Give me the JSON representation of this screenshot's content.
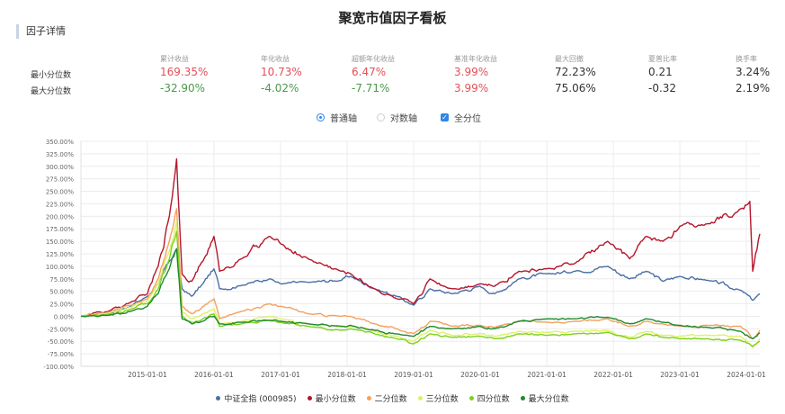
{
  "page": {
    "title": "聚宽市值因子看板",
    "section": "因子详情"
  },
  "stats": {
    "headers": [
      "累计收益",
      "年化收益",
      "超额年化收益",
      "基准年化收益",
      "最大回撤",
      "夏普比率",
      "换手率"
    ],
    "rows": [
      {
        "label": "最小分位数",
        "values": [
          "169.35%",
          "10.73%",
          "6.47%",
          "3.99%",
          "72.23%",
          "0.21",
          "3.24%"
        ],
        "tones": [
          "pos",
          "pos",
          "pos",
          "pos",
          "neu",
          "neu",
          "neu"
        ]
      },
      {
        "label": "最大分位数",
        "values": [
          "-32.90%",
          "-4.02%",
          "-7.71%",
          "3.99%",
          "75.06%",
          "-0.32",
          "2.19%"
        ],
        "tones": [
          "neg",
          "neg",
          "neg",
          "pos",
          "neu",
          "neu",
          "neu"
        ]
      }
    ]
  },
  "controls": {
    "linear_label": "普通轴",
    "log_label": "对数轴",
    "all_label": "全分位",
    "linear_selected": true,
    "all_checked": true
  },
  "colors": {
    "accent": "#2f86e8",
    "positive": "#e4505a",
    "negative": "#4a9a4a"
  },
  "chart_data": {
    "type": "line",
    "ylim": [
      -100,
      350
    ],
    "y_ticks": [
      "350.00%",
      "325.00%",
      "300.00%",
      "275.00%",
      "250.00%",
      "225.00%",
      "200.00%",
      "175.00%",
      "150.00%",
      "125.00%",
      "100.00%",
      "75.00%",
      "50.00%",
      "25.00%",
      "0.00%",
      "-25.00%",
      "-50.00%",
      "-75.00%",
      "-100.00%"
    ],
    "x_range": [
      "2014-01-01",
      "2024-03-15"
    ],
    "x_ticks": [
      "2015-01-01",
      "2016-01-01",
      "2017-01-01",
      "2018-01-01",
      "2019-01-01",
      "2020-01-01",
      "2021-01-01",
      "2022-01-01",
      "2023-01-01",
      "2024-01-01"
    ],
    "grid": true,
    "legend_position": "bottom",
    "series": [
      {
        "name": "中证全指 (000985)",
        "color": "#4a6fa5",
        "points": [
          [
            "2014-01-01",
            0
          ],
          [
            "2014-06-01",
            5
          ],
          [
            "2014-10-01",
            20
          ],
          [
            "2015-01-01",
            40
          ],
          [
            "2015-03-01",
            65
          ],
          [
            "2015-05-01",
            110
          ],
          [
            "2015-06-10",
            135
          ],
          [
            "2015-07-10",
            55
          ],
          [
            "2015-09-01",
            40
          ],
          [
            "2015-11-01",
            65
          ],
          [
            "2016-01-01",
            95
          ],
          [
            "2016-02-01",
            55
          ],
          [
            "2016-06-01",
            62
          ],
          [
            "2016-11-01",
            75
          ],
          [
            "2017-01-01",
            65
          ],
          [
            "2017-06-01",
            68
          ],
          [
            "2017-12-01",
            72
          ],
          [
            "2018-01-20",
            80
          ],
          [
            "2018-06-01",
            55
          ],
          [
            "2018-10-01",
            40
          ],
          [
            "2019-01-01",
            22
          ],
          [
            "2019-04-01",
            55
          ],
          [
            "2019-08-01",
            45
          ],
          [
            "2020-01-01",
            60
          ],
          [
            "2020-03-20",
            45
          ],
          [
            "2020-08-01",
            75
          ],
          [
            "2021-01-01",
            85
          ],
          [
            "2021-06-01",
            90
          ],
          [
            "2021-12-01",
            100
          ],
          [
            "2022-04-01",
            75
          ],
          [
            "2022-07-01",
            90
          ],
          [
            "2022-10-01",
            70
          ],
          [
            "2023-01-01",
            80
          ],
          [
            "2023-06-01",
            72
          ],
          [
            "2023-12-01",
            52
          ],
          [
            "2024-02-05",
            32
          ],
          [
            "2024-03-15",
            45
          ]
        ]
      },
      {
        "name": "最小分位数",
        "color": "#b5162c",
        "points": [
          [
            "2014-01-01",
            0
          ],
          [
            "2014-06-01",
            10
          ],
          [
            "2014-10-01",
            28
          ],
          [
            "2015-01-01",
            45
          ],
          [
            "2015-03-01",
            100
          ],
          [
            "2015-05-01",
            200
          ],
          [
            "2015-06-10",
            315
          ],
          [
            "2015-07-10",
            85
          ],
          [
            "2015-09-01",
            70
          ],
          [
            "2015-11-01",
            110
          ],
          [
            "2016-01-01",
            160
          ],
          [
            "2016-02-01",
            90
          ],
          [
            "2016-06-01",
            115
          ],
          [
            "2016-11-01",
            160
          ],
          [
            "2017-01-01",
            145
          ],
          [
            "2017-06-01",
            115
          ],
          [
            "2017-12-01",
            90
          ],
          [
            "2018-01-20",
            85
          ],
          [
            "2018-06-01",
            55
          ],
          [
            "2018-10-01",
            35
          ],
          [
            "2019-01-01",
            25
          ],
          [
            "2019-04-01",
            75
          ],
          [
            "2019-08-01",
            55
          ],
          [
            "2020-01-01",
            65
          ],
          [
            "2020-03-20",
            60
          ],
          [
            "2020-08-01",
            90
          ],
          [
            "2021-01-01",
            95
          ],
          [
            "2021-06-01",
            105
          ],
          [
            "2021-12-01",
            150
          ],
          [
            "2022-04-01",
            115
          ],
          [
            "2022-07-01",
            160
          ],
          [
            "2022-10-01",
            150
          ],
          [
            "2023-01-01",
            180
          ],
          [
            "2023-06-01",
            185
          ],
          [
            "2023-12-01",
            215
          ],
          [
            "2024-01-20",
            230
          ],
          [
            "2024-02-05",
            90
          ],
          [
            "2024-03-15",
            165
          ]
        ]
      },
      {
        "name": "二分位数",
        "color": "#f3a15e",
        "points": [
          [
            "2014-01-01",
            0
          ],
          [
            "2014-06-01",
            8
          ],
          [
            "2014-10-01",
            22
          ],
          [
            "2015-01-01",
            35
          ],
          [
            "2015-03-01",
            75
          ],
          [
            "2015-05-01",
            150
          ],
          [
            "2015-06-10",
            215
          ],
          [
            "2015-07-10",
            20
          ],
          [
            "2015-09-01",
            5
          ],
          [
            "2015-11-01",
            20
          ],
          [
            "2016-01-01",
            35
          ],
          [
            "2016-02-01",
            -5
          ],
          [
            "2016-06-01",
            10
          ],
          [
            "2016-11-01",
            25
          ],
          [
            "2017-01-01",
            20
          ],
          [
            "2017-06-01",
            5
          ],
          [
            "2017-12-01",
            0
          ],
          [
            "2018-01-20",
            0
          ],
          [
            "2018-06-01",
            -15
          ],
          [
            "2018-10-01",
            -25
          ],
          [
            "2019-01-01",
            -35
          ],
          [
            "2019-04-01",
            -10
          ],
          [
            "2019-08-01",
            -20
          ],
          [
            "2020-01-01",
            -18
          ],
          [
            "2020-03-20",
            -22
          ],
          [
            "2020-08-01",
            -10
          ],
          [
            "2021-01-01",
            -12
          ],
          [
            "2021-06-01",
            -10
          ],
          [
            "2021-12-01",
            -5
          ],
          [
            "2022-04-01",
            -20
          ],
          [
            "2022-07-01",
            -10
          ],
          [
            "2022-10-01",
            -15
          ],
          [
            "2023-01-01",
            -20
          ],
          [
            "2023-06-01",
            -18
          ],
          [
            "2023-12-01",
            -20
          ],
          [
            "2024-02-05",
            -45
          ],
          [
            "2024-03-15",
            -28
          ]
        ]
      },
      {
        "name": "三分位数",
        "color": "#dff06a",
        "points": [
          [
            "2014-01-01",
            0
          ],
          [
            "2014-06-01",
            6
          ],
          [
            "2014-10-01",
            18
          ],
          [
            "2015-01-01",
            30
          ],
          [
            "2015-03-01",
            65
          ],
          [
            "2015-05-01",
            130
          ],
          [
            "2015-06-10",
            190
          ],
          [
            "2015-07-10",
            8
          ],
          [
            "2015-09-01",
            -5
          ],
          [
            "2015-11-01",
            5
          ],
          [
            "2016-01-01",
            15
          ],
          [
            "2016-02-01",
            -15
          ],
          [
            "2016-06-01",
            -10
          ],
          [
            "2016-11-01",
            0
          ],
          [
            "2017-01-01",
            -5
          ],
          [
            "2017-06-01",
            -15
          ],
          [
            "2017-12-01",
            -22
          ],
          [
            "2018-01-20",
            -20
          ],
          [
            "2018-06-01",
            -30
          ],
          [
            "2018-10-01",
            -40
          ],
          [
            "2019-01-01",
            -50
          ],
          [
            "2019-04-01",
            -28
          ],
          [
            "2019-08-01",
            -38
          ],
          [
            "2020-01-01",
            -35
          ],
          [
            "2020-03-20",
            -40
          ],
          [
            "2020-08-01",
            -30
          ],
          [
            "2021-01-01",
            -32
          ],
          [
            "2021-06-01",
            -30
          ],
          [
            "2021-12-01",
            -28
          ],
          [
            "2022-04-01",
            -42
          ],
          [
            "2022-07-01",
            -30
          ],
          [
            "2022-10-01",
            -38
          ],
          [
            "2023-01-01",
            -40
          ],
          [
            "2023-06-01",
            -38
          ],
          [
            "2023-12-01",
            -40
          ],
          [
            "2024-02-05",
            -62
          ],
          [
            "2024-03-15",
            -45
          ]
        ]
      },
      {
        "name": "四分位数",
        "color": "#7cd11c",
        "points": [
          [
            "2014-01-01",
            0
          ],
          [
            "2014-06-01",
            4
          ],
          [
            "2014-10-01",
            14
          ],
          [
            "2015-01-01",
            25
          ],
          [
            "2015-03-01",
            55
          ],
          [
            "2015-05-01",
            115
          ],
          [
            "2015-06-10",
            170
          ],
          [
            "2015-07-10",
            0
          ],
          [
            "2015-09-01",
            -12
          ],
          [
            "2015-11-01",
            -5
          ],
          [
            "2016-01-01",
            5
          ],
          [
            "2016-02-01",
            -20
          ],
          [
            "2016-06-01",
            -15
          ],
          [
            "2016-11-01",
            -8
          ],
          [
            "2017-01-01",
            -12
          ],
          [
            "2017-06-01",
            -20
          ],
          [
            "2017-12-01",
            -28
          ],
          [
            "2018-01-20",
            -25
          ],
          [
            "2018-06-01",
            -35
          ],
          [
            "2018-10-01",
            -45
          ],
          [
            "2019-01-01",
            -55
          ],
          [
            "2019-04-01",
            -35
          ],
          [
            "2019-08-01",
            -42
          ],
          [
            "2020-01-01",
            -40
          ],
          [
            "2020-03-20",
            -45
          ],
          [
            "2020-08-01",
            -35
          ],
          [
            "2021-01-01",
            -38
          ],
          [
            "2021-06-01",
            -35
          ],
          [
            "2021-12-01",
            -32
          ],
          [
            "2022-04-01",
            -45
          ],
          [
            "2022-07-01",
            -35
          ],
          [
            "2022-10-01",
            -42
          ],
          [
            "2023-01-01",
            -45
          ],
          [
            "2023-06-01",
            -45
          ],
          [
            "2023-12-01",
            -48
          ],
          [
            "2024-02-05",
            -60
          ],
          [
            "2024-03-15",
            -50
          ]
        ]
      },
      {
        "name": "最大分位数",
        "color": "#1f8a2e",
        "points": [
          [
            "2014-01-01",
            0
          ],
          [
            "2014-06-01",
            2
          ],
          [
            "2014-10-01",
            10
          ],
          [
            "2015-01-01",
            20
          ],
          [
            "2015-03-01",
            45
          ],
          [
            "2015-05-01",
            95
          ],
          [
            "2015-06-10",
            135
          ],
          [
            "2015-07-10",
            -5
          ],
          [
            "2015-09-01",
            -15
          ],
          [
            "2015-11-01",
            -10
          ],
          [
            "2016-01-01",
            0
          ],
          [
            "2016-02-01",
            -15
          ],
          [
            "2016-06-01",
            -12
          ],
          [
            "2016-11-01",
            -8
          ],
          [
            "2017-01-01",
            -10
          ],
          [
            "2017-06-01",
            -15
          ],
          [
            "2017-12-01",
            -20
          ],
          [
            "2018-01-20",
            -18
          ],
          [
            "2018-06-01",
            -28
          ],
          [
            "2018-10-01",
            -35
          ],
          [
            "2019-01-01",
            -40
          ],
          [
            "2019-04-01",
            -20
          ],
          [
            "2019-08-01",
            -25
          ],
          [
            "2020-01-01",
            -20
          ],
          [
            "2020-03-20",
            -25
          ],
          [
            "2020-08-01",
            -10
          ],
          [
            "2021-01-01",
            -5
          ],
          [
            "2021-06-01",
            -5
          ],
          [
            "2021-12-01",
            -2
          ],
          [
            "2022-04-01",
            -15
          ],
          [
            "2022-07-01",
            -5
          ],
          [
            "2022-10-01",
            -12
          ],
          [
            "2023-01-01",
            -18
          ],
          [
            "2023-06-01",
            -22
          ],
          [
            "2023-12-01",
            -30
          ],
          [
            "2024-02-05",
            -45
          ],
          [
            "2024-03-15",
            -33
          ]
        ]
      }
    ]
  }
}
